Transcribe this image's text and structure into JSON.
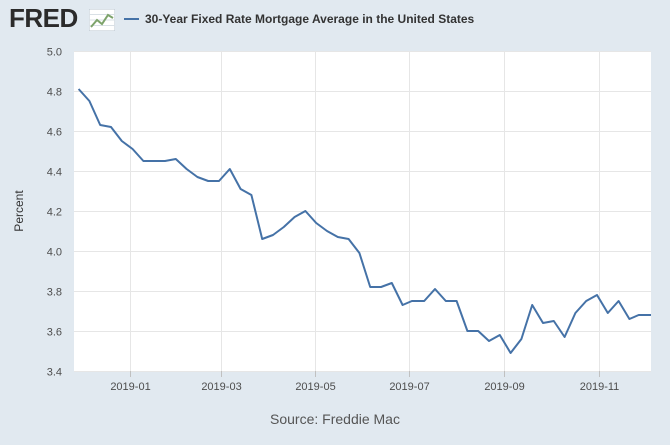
{
  "header": {
    "logo_text": "FRED",
    "logo_icon": "line-chart-icon"
  },
  "colors": {
    "page_bg": "#e1e9f0",
    "plot_bg": "#ffffff",
    "series": "#4572a7",
    "grid": "#e6e6e6"
  },
  "chart_data": {
    "type": "line",
    "ylabel": "Percent",
    "xlabel": "",
    "ylim": [
      3.4,
      5.0
    ],
    "yticks": [
      "3.4",
      "3.6",
      "3.8",
      "4.0",
      "4.2",
      "4.4",
      "4.6",
      "4.8",
      "5.0"
    ],
    "xlim": [
      "2018-11-26",
      "2019-12-05"
    ],
    "xticks": [
      {
        "date": "2019-01-01",
        "label": "2019-01"
      },
      {
        "date": "2019-03-01",
        "label": "2019-03"
      },
      {
        "date": "2019-05-01",
        "label": "2019-05"
      },
      {
        "date": "2019-07-01",
        "label": "2019-07"
      },
      {
        "date": "2019-09-01",
        "label": "2019-09"
      },
      {
        "date": "2019-11-01",
        "label": "2019-11"
      }
    ],
    "grid": true,
    "legend_position": "top",
    "series": [
      {
        "name": "30-Year Fixed Rate Mortgage Average in the United States",
        "points": [
          [
            "2018-11-29",
            4.81
          ],
          [
            "2018-12-06",
            4.75
          ],
          [
            "2018-12-13",
            4.63
          ],
          [
            "2018-12-20",
            4.62
          ],
          [
            "2018-12-27",
            4.55
          ],
          [
            "2019-01-03",
            4.51
          ],
          [
            "2019-01-10",
            4.45
          ],
          [
            "2019-01-17",
            4.45
          ],
          [
            "2019-01-24",
            4.45
          ],
          [
            "2019-01-31",
            4.46
          ],
          [
            "2019-02-07",
            4.41
          ],
          [
            "2019-02-14",
            4.37
          ],
          [
            "2019-02-21",
            4.35
          ],
          [
            "2019-02-28",
            4.35
          ],
          [
            "2019-03-07",
            4.41
          ],
          [
            "2019-03-14",
            4.31
          ],
          [
            "2019-03-21",
            4.28
          ],
          [
            "2019-03-28",
            4.06
          ],
          [
            "2019-04-04",
            4.08
          ],
          [
            "2019-04-11",
            4.12
          ],
          [
            "2019-04-18",
            4.17
          ],
          [
            "2019-04-25",
            4.2
          ],
          [
            "2019-05-02",
            4.14
          ],
          [
            "2019-05-09",
            4.1
          ],
          [
            "2019-05-16",
            4.07
          ],
          [
            "2019-05-23",
            4.06
          ],
          [
            "2019-05-30",
            3.99
          ],
          [
            "2019-06-06",
            3.82
          ],
          [
            "2019-06-13",
            3.82
          ],
          [
            "2019-06-20",
            3.84
          ],
          [
            "2019-06-27",
            3.73
          ],
          [
            "2019-07-03",
            3.75
          ],
          [
            "2019-07-11",
            3.75
          ],
          [
            "2019-07-18",
            3.81
          ],
          [
            "2019-07-25",
            3.75
          ],
          [
            "2019-08-01",
            3.75
          ],
          [
            "2019-08-08",
            3.6
          ],
          [
            "2019-08-15",
            3.6
          ],
          [
            "2019-08-22",
            3.55
          ],
          [
            "2019-08-29",
            3.58
          ],
          [
            "2019-09-05",
            3.49
          ],
          [
            "2019-09-12",
            3.56
          ],
          [
            "2019-09-19",
            3.73
          ],
          [
            "2019-09-26",
            3.64
          ],
          [
            "2019-10-03",
            3.65
          ],
          [
            "2019-10-10",
            3.57
          ],
          [
            "2019-10-17",
            3.69
          ],
          [
            "2019-10-24",
            3.75
          ],
          [
            "2019-10-31",
            3.78
          ],
          [
            "2019-11-07",
            3.69
          ],
          [
            "2019-11-14",
            3.75
          ],
          [
            "2019-11-21",
            3.66
          ],
          [
            "2019-11-27",
            3.68
          ],
          [
            "2019-12-05",
            3.68
          ]
        ]
      }
    ]
  },
  "footer": {
    "source": "Source: Freddie Mac"
  }
}
